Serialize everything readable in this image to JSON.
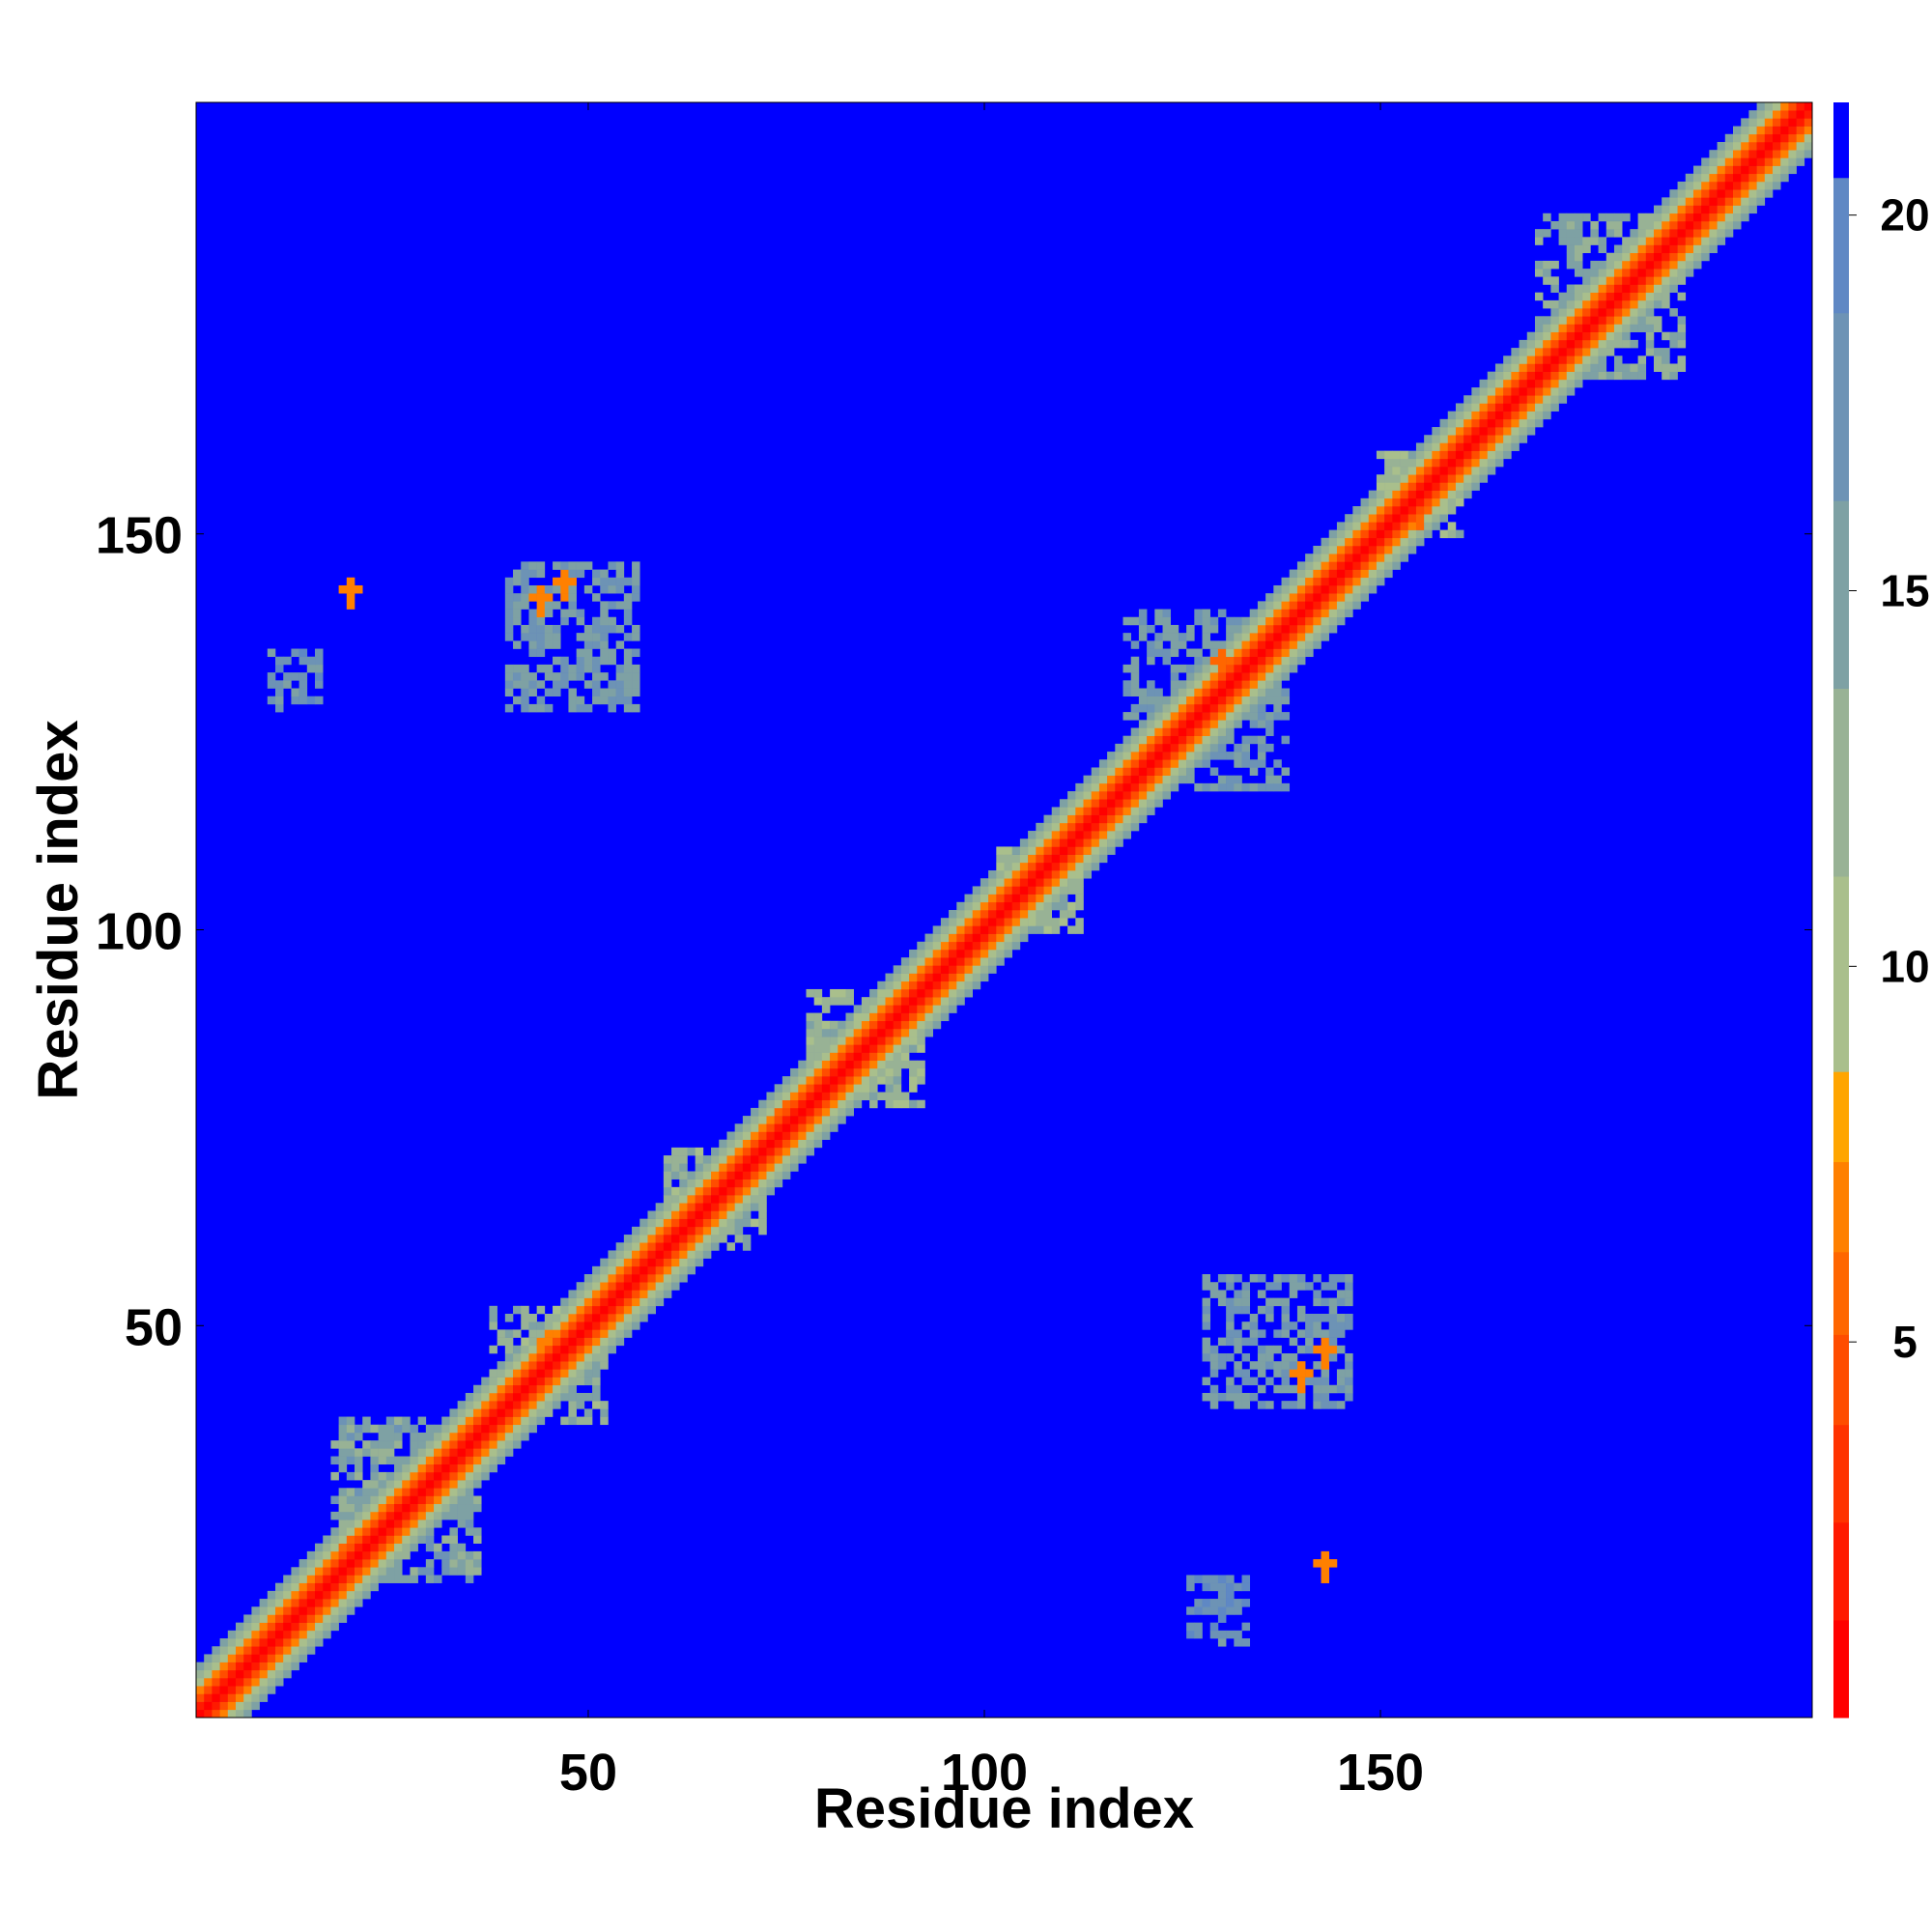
{
  "chart_data": {
    "type": "heatmap",
    "title": "",
    "xlabel": "Residue index",
    "ylabel": "Residue index",
    "x_range": [
      1,
      204
    ],
    "y_range": [
      1,
      204
    ],
    "x_ticks": [
      50,
      100,
      150
    ],
    "y_ticks": [
      50,
      100,
      150
    ],
    "colorbar": {
      "range": [
        0,
        21.5
      ],
      "ticks": [
        5,
        10,
        15,
        20
      ],
      "bands": [
        {
          "from": 0,
          "to": 1.3,
          "color": "#ff0000"
        },
        {
          "from": 1.3,
          "to": 2.6,
          "color": "#ff1a00"
        },
        {
          "from": 2.6,
          "to": 3.9,
          "color": "#ff3300"
        },
        {
          "from": 3.9,
          "to": 5.1,
          "color": "#ff4d00"
        },
        {
          "from": 5.1,
          "to": 6.2,
          "color": "#ff6600"
        },
        {
          "from": 6.2,
          "to": 7.4,
          "color": "#ff8000"
        },
        {
          "from": 7.4,
          "to": 8.6,
          "color": "#ffa500"
        },
        {
          "from": 8.6,
          "to": 11.2,
          "color": "#a9bf8c"
        },
        {
          "from": 11.2,
          "to": 13.7,
          "color": "#98b295"
        },
        {
          "from": 13.7,
          "to": 16.2,
          "color": "#7ea1a4"
        },
        {
          "from": 16.2,
          "to": 18.7,
          "color": "#6d93b5"
        },
        {
          "from": 18.7,
          "to": 20.5,
          "color": "#5f88c4"
        },
        {
          "from": 20.5,
          "to": 21.5,
          "color": "#0000ff"
        }
      ]
    },
    "background_value": 21,
    "diagonal_profile": [
      {
        "offset": 0,
        "value": 1
      },
      {
        "offset": 1,
        "value": 2.5
      },
      {
        "offset": 2,
        "value": 4.5
      },
      {
        "offset": 3,
        "value": 6.5
      },
      {
        "offset": 4,
        "value": 9.5
      },
      {
        "offset": 5,
        "value": 12.5
      },
      {
        "offset": 6,
        "value": 15
      }
    ],
    "contact_regions": [
      {
        "x": [
          118,
          138
        ],
        "y": [
          118,
          140
        ],
        "value": 16
      },
      {
        "x": [
          150,
          160
        ],
        "y": [
          150,
          160
        ],
        "value": 12
      },
      {
        "x": [
          170,
          188
        ],
        "y": [
          170,
          190
        ],
        "value": 14
      },
      {
        "x": [
          38,
          52
        ],
        "y": [
          38,
          52
        ],
        "value": 13
      },
      {
        "x": [
          18,
          36
        ],
        "y": [
          18,
          38
        ],
        "value": 15
      },
      {
        "x": [
          10,
          16
        ],
        "y": [
          128,
          135
        ],
        "value": 17
      },
      {
        "x": [
          40,
          56
        ],
        "y": [
          128,
          146
        ],
        "value": 16
      },
      {
        "x": [
          128,
          146
        ],
        "y": [
          40,
          56
        ],
        "value": 16
      },
      {
        "x": [
          126,
          133
        ],
        "y": [
          10,
          18
        ],
        "value": 18
      },
      {
        "x": [
          102,
          112
        ],
        "y": [
          100,
          110
        ],
        "value": 12
      },
      {
        "x": [
          60,
          72
        ],
        "y": [
          60,
          72
        ],
        "value": 13
      },
      {
        "x": [
          78,
          92
        ],
        "y": [
          78,
          92
        ],
        "value": 12
      }
    ],
    "close_contacts": [
      {
        "x": 20,
        "y": 143,
        "value": 7
      },
      {
        "x": 44,
        "y": 142,
        "value": 6.5
      },
      {
        "x": 47,
        "y": 144,
        "value": 7
      },
      {
        "x": 140,
        "y": 44,
        "value": 6.5
      },
      {
        "x": 143,
        "y": 47,
        "value": 7
      },
      {
        "x": 143,
        "y": 20,
        "value": 7
      },
      {
        "x": 20,
        "y": 22,
        "value": 6
      },
      {
        "x": 45,
        "y": 48,
        "value": 6.5
      },
      {
        "x": 75,
        "y": 77,
        "value": 6
      },
      {
        "x": 155,
        "y": 153,
        "value": 6
      },
      {
        "x": 176,
        "y": 178,
        "value": 6.5
      },
      {
        "x": 130,
        "y": 134,
        "value": 6
      }
    ]
  }
}
